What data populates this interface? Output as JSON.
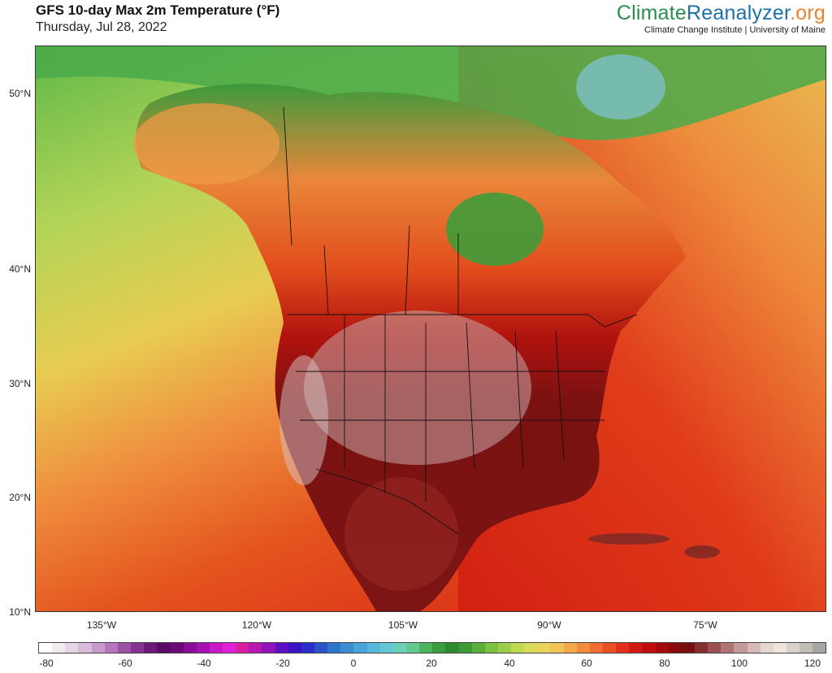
{
  "header": {
    "title": "GFS 10-day Max 2m Temperature (°F)",
    "date": "Thursday, Jul 28, 2022"
  },
  "brand": {
    "name_part1": "Climate",
    "name_part2": "Reanalyzer",
    "name_part3": ".org",
    "subtitle": "Climate Change Institute | University of Maine"
  },
  "map": {
    "lat_labels": [
      "50°N",
      "40°N",
      "30°N",
      "20°N",
      "10°N"
    ],
    "lon_labels": [
      "135°W",
      "120°W",
      "105°W",
      "90°W",
      "75°W"
    ]
  },
  "colorbar": {
    "labels": [
      "-80",
      "-60",
      "-40",
      "-20",
      "0",
      "20",
      "40",
      "60",
      "80",
      "100",
      "120"
    ],
    "colors": [
      "#ffffff",
      "#f2ecf2",
      "#e6d6e8",
      "#d9bcdc",
      "#c99acc",
      "#b576bb",
      "#9d52a6",
      "#853392",
      "#6b1a7a",
      "#5a0a66",
      "#6a0a78",
      "#8a0e96",
      "#a612b0",
      "#c818c8",
      "#e020d8",
      "#d81ea0",
      "#b818b0",
      "#8c14b8",
      "#5e10c0",
      "#3a14c8",
      "#2a2ec8",
      "#2a54c8",
      "#2e74c8",
      "#3a8ed0",
      "#4aa4d8",
      "#58b8dc",
      "#64c8d4",
      "#6cd0b8",
      "#64c890",
      "#4cb45c",
      "#3a9c3c",
      "#2e8a2e",
      "#3e9a34",
      "#5aae3a",
      "#7cc044",
      "#9ecc4c",
      "#c0d852",
      "#dadc58",
      "#e8d45a",
      "#f0c456",
      "#f4aa4c",
      "#f48c3e",
      "#f06c30",
      "#ea4e24",
      "#e2301a",
      "#d41812",
      "#c00e0e",
      "#a40a0a",
      "#880c0c",
      "#741010",
      "#843030",
      "#9a5050",
      "#b07474",
      "#c49a9a",
      "#d6baba",
      "#e6d6d0",
      "#eee6dc",
      "#d8d2cc",
      "#c0bcb8",
      "#a8a6a4"
    ]
  }
}
